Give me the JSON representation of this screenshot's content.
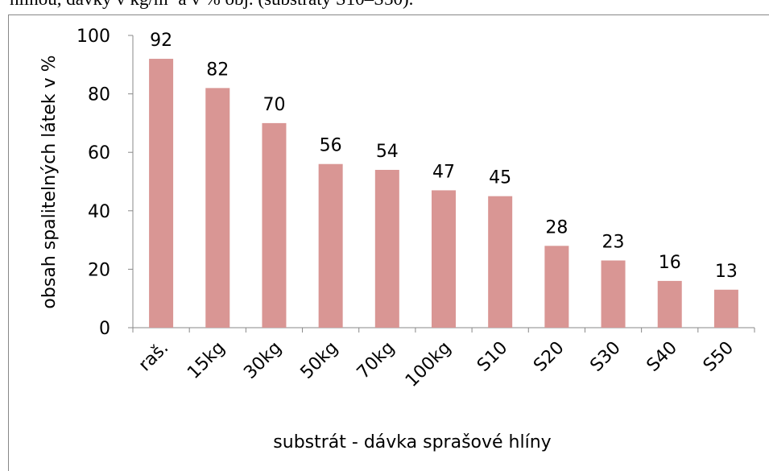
{
  "caption": "hlinou, dávky v kg/m³ a v % obj. (substráty S10–S50).",
  "chart_data": {
    "type": "bar",
    "categories": [
      "raš.",
      "15kg",
      "30kg",
      "50kg",
      "70kg",
      "100kg",
      "S10",
      "S20",
      "S30",
      "S40",
      "S50"
    ],
    "values": [
      92,
      82,
      70,
      56,
      54,
      47,
      45,
      28,
      23,
      16,
      13
    ],
    "color": "#d99694",
    "ylim": [
      0,
      100
    ],
    "yticks": [
      0,
      20,
      40,
      60,
      80,
      100
    ],
    "xlabel": "substrát - dávka sprašové hlíny",
    "ylabel": "obsah spalitelných látek v  %",
    "grid": false
  }
}
